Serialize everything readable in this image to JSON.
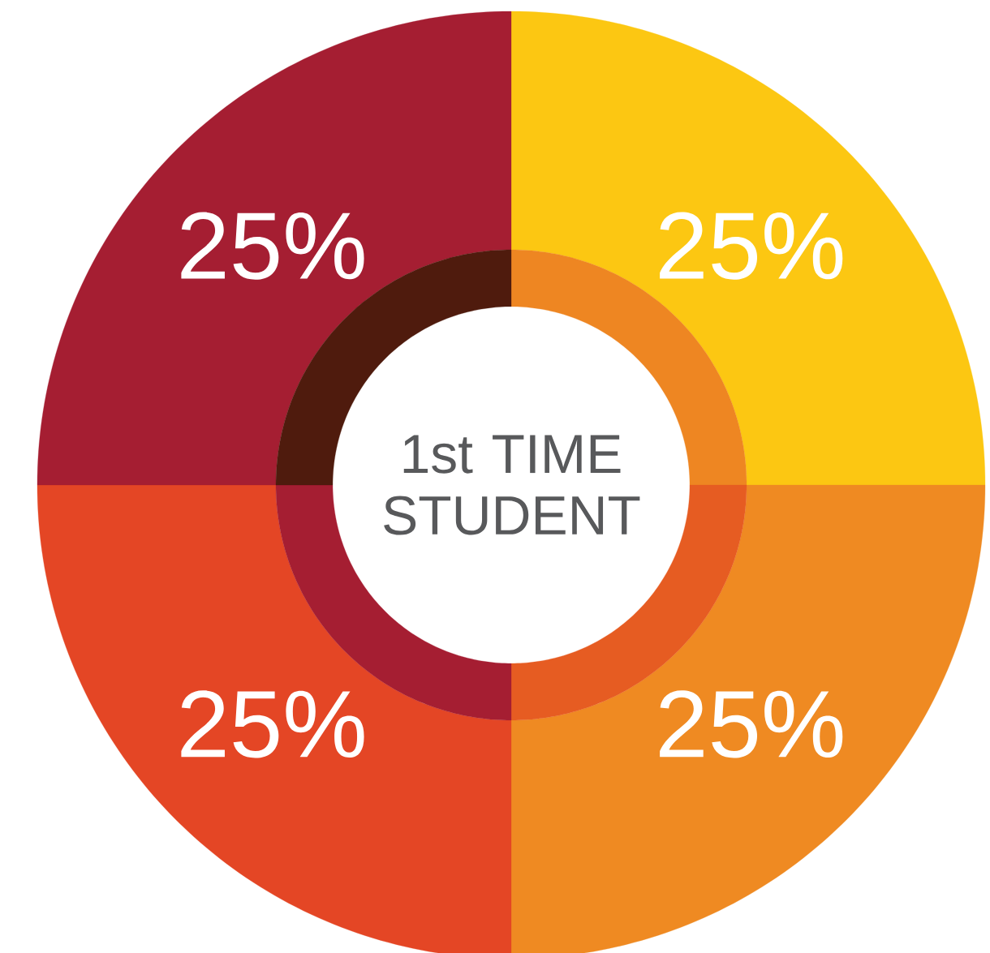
{
  "chart_data": [
    {
      "type": "donut",
      "categories": [
        null,
        null,
        null,
        null
      ],
      "values": [
        25,
        25,
        25,
        25
      ],
      "colors": [
        "#fcc712",
        "#ef8a22",
        "#e44625",
        "#a51e32"
      ],
      "value_labels": [
        "25%",
        "25%",
        "25%",
        "25%"
      ]
    },
    {
      "type": "donut",
      "title": "1st TIME STUDENT",
      "categories": [
        null,
        null,
        null,
        null
      ],
      "values": [
        25,
        25,
        25,
        25
      ],
      "colors": [
        "#ee8622",
        "#e65c22",
        "#a51e32",
        "#4f1b0d"
      ]
    }
  ]
}
